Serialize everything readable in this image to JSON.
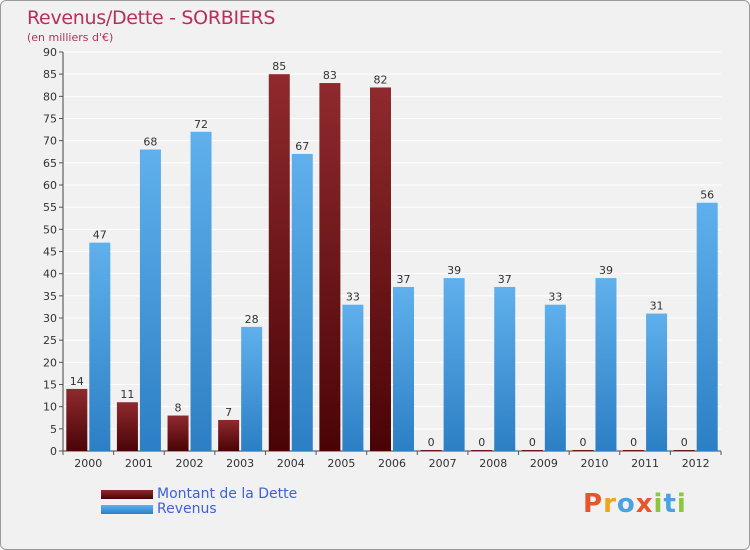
{
  "header": {
    "title": "Revenus/Dette - SORBIERS",
    "subtitle": "(en milliers d'€)"
  },
  "brand": {
    "text": "Proxiti",
    "colors": [
      "#e8542b",
      "#f2a31c",
      "#4aa3df",
      "#e8542b",
      "#8cc63f",
      "#4aa3df",
      "#8cc63f"
    ]
  },
  "legend": {
    "position": "bottom-left",
    "items": [
      {
        "label": "Montant de la Dette",
        "color": "#7a0f12"
      },
      {
        "label": "Revenus",
        "color": "#4a9ee0"
      }
    ]
  },
  "chart_data": {
    "type": "bar",
    "title": "Revenus/Dette - SORBIERS",
    "subtitle": "(en milliers d'€)",
    "xlabel": "",
    "ylabel": "",
    "ylim": [
      0,
      90
    ],
    "yticks": [
      0,
      5,
      10,
      15,
      20,
      25,
      30,
      35,
      40,
      45,
      50,
      55,
      60,
      65,
      70,
      75,
      80,
      85,
      90
    ],
    "grid": true,
    "categories": [
      "2000",
      "2001",
      "2002",
      "2003",
      "2004",
      "2005",
      "2006",
      "2007",
      "2008",
      "2009",
      "2010",
      "2011",
      "2012"
    ],
    "series": [
      {
        "name": "Montant de la Dette",
        "color": "#7a0f12",
        "values": [
          14,
          11,
          8,
          7,
          85,
          83,
          82,
          0,
          0,
          0,
          0,
          0,
          0
        ],
        "labels": [
          "14",
          "11",
          "8",
          "7",
          "85",
          "83",
          "82",
          "0",
          "0",
          "0",
          "0",
          "0",
          "0"
        ]
      },
      {
        "name": "Revenus",
        "color": "#4a9ee0",
        "values": [
          47,
          68,
          72,
          28,
          67,
          33,
          37,
          39,
          37,
          33,
          39,
          31,
          56
        ],
        "labels": [
          "47",
          "68",
          "72",
          "28",
          "67",
          "33",
          "37",
          "39",
          "37",
          "33",
          "39",
          "31",
          "56"
        ]
      }
    ]
  }
}
